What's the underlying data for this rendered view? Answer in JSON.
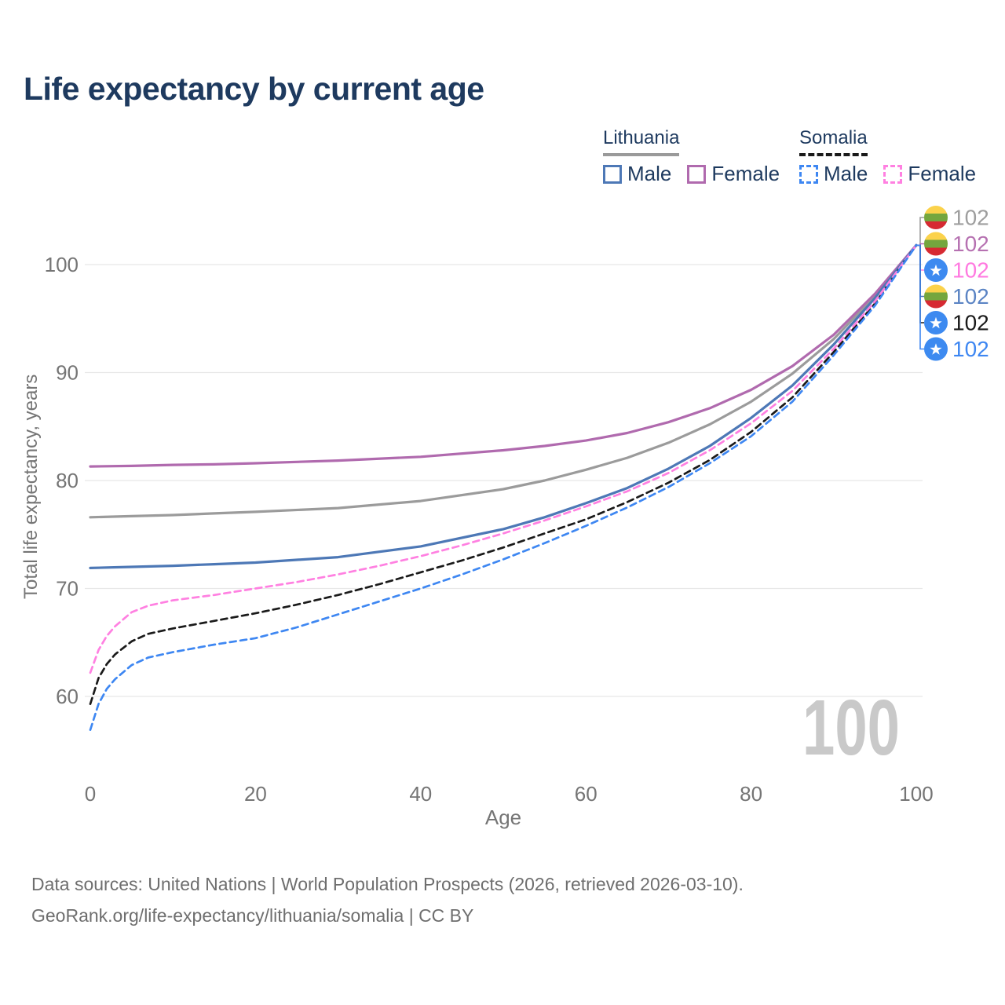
{
  "title": "Life expectancy by current age",
  "legend": {
    "groups": [
      {
        "name": "Lithuania",
        "style": "solid",
        "items": [
          {
            "label": "Male"
          },
          {
            "label": "Female"
          }
        ]
      },
      {
        "name": "Somalia",
        "style": "dashed",
        "items": [
          {
            "label": "Male"
          },
          {
            "label": "Female"
          }
        ]
      }
    ]
  },
  "axes": {
    "y_title": "Total life expectancy, years",
    "x_title": "Age"
  },
  "footer": {
    "line1": "Data sources: United Nations | World Population Prospects (2026, retrieved 2026-03-10).",
    "line2": "GeoRank.org/life-expectancy/lithuania/somalia | CC BY"
  },
  "colors": {
    "title_navy": "#1e3a5f",
    "axis_text": "#757575",
    "gridline": "#e7e7e7",
    "watermark": "#c9c9c9",
    "lithuania_male": "#4d78b6",
    "lithuania_female": "#b06aae",
    "lithuania_total": "#9b9b9b",
    "somalia_male": "#3e87f2",
    "somalia_female": "#ff80e1",
    "somalia_total": "#1a1a1a"
  },
  "chart_data": {
    "type": "line",
    "title": "Life expectancy by current age",
    "xlabel": "Age",
    "ylabel": "Total life expectancy, years",
    "xlim": [
      0,
      100
    ],
    "ylim": [
      55,
      103
    ],
    "xticks": [
      0,
      20,
      40,
      60,
      80,
      100
    ],
    "yticks": [
      60,
      70,
      80,
      90,
      100
    ],
    "grid": "horizontal",
    "legend_position": "top-right",
    "age_counter_watermark": "100",
    "series": [
      {
        "name": "Lithuania Total",
        "country": "Lithuania",
        "sex": "both",
        "color": "#9b9b9b",
        "dash": "none",
        "end_label": "102",
        "points": [
          [
            0,
            76.6
          ],
          [
            5,
            76.7
          ],
          [
            10,
            76.8
          ],
          [
            15,
            76.95
          ],
          [
            20,
            77.1
          ],
          [
            30,
            77.45
          ],
          [
            40,
            78.1
          ],
          [
            50,
            79.2
          ],
          [
            55,
            80.0
          ],
          [
            60,
            81.0
          ],
          [
            65,
            82.1
          ],
          [
            70,
            83.5
          ],
          [
            75,
            85.2
          ],
          [
            80,
            87.3
          ],
          [
            85,
            89.9
          ],
          [
            90,
            93.1
          ],
          [
            95,
            97.1
          ],
          [
            100,
            101.8
          ]
        ]
      },
      {
        "name": "Lithuania Female",
        "country": "Lithuania",
        "sex": "female",
        "color": "#b06aae",
        "dash": "none",
        "end_label": "102",
        "points": [
          [
            0,
            81.3
          ],
          [
            5,
            81.35
          ],
          [
            10,
            81.45
          ],
          [
            15,
            81.5
          ],
          [
            20,
            81.6
          ],
          [
            30,
            81.85
          ],
          [
            40,
            82.2
          ],
          [
            50,
            82.8
          ],
          [
            55,
            83.2
          ],
          [
            60,
            83.7
          ],
          [
            65,
            84.4
          ],
          [
            70,
            85.4
          ],
          [
            75,
            86.7
          ],
          [
            80,
            88.4
          ],
          [
            85,
            90.6
          ],
          [
            90,
            93.5
          ],
          [
            95,
            97.3
          ],
          [
            100,
            101.8
          ]
        ]
      },
      {
        "name": "Lithuania Male",
        "country": "Lithuania",
        "sex": "male",
        "color": "#4d78b6",
        "dash": "none",
        "end_label": "102",
        "points": [
          [
            0,
            71.9
          ],
          [
            5,
            72.0
          ],
          [
            10,
            72.1
          ],
          [
            15,
            72.25
          ],
          [
            20,
            72.4
          ],
          [
            30,
            72.9
          ],
          [
            40,
            73.9
          ],
          [
            50,
            75.5
          ],
          [
            55,
            76.6
          ],
          [
            60,
            77.9
          ],
          [
            65,
            79.3
          ],
          [
            70,
            81.1
          ],
          [
            75,
            83.2
          ],
          [
            80,
            85.8
          ],
          [
            85,
            88.8
          ],
          [
            90,
            92.6
          ],
          [
            95,
            96.9
          ],
          [
            100,
            101.8
          ]
        ]
      },
      {
        "name": "Somalia Total",
        "country": "Somalia",
        "sex": "both",
        "color": "#1a1a1a",
        "dash": "dashed",
        "end_label": "102",
        "points": [
          [
            0,
            59.3
          ],
          [
            1,
            61.7
          ],
          [
            2,
            63.0
          ],
          [
            3,
            63.9
          ],
          [
            5,
            65.1
          ],
          [
            7,
            65.8
          ],
          [
            10,
            66.3
          ],
          [
            15,
            67.0
          ],
          [
            20,
            67.7
          ],
          [
            25,
            68.5
          ],
          [
            30,
            69.4
          ],
          [
            35,
            70.4
          ],
          [
            40,
            71.5
          ],
          [
            45,
            72.6
          ],
          [
            50,
            73.8
          ],
          [
            55,
            75.1
          ],
          [
            60,
            76.4
          ],
          [
            65,
            78.0
          ],
          [
            70,
            79.8
          ],
          [
            75,
            81.9
          ],
          [
            80,
            84.5
          ],
          [
            85,
            87.7
          ],
          [
            90,
            91.9
          ],
          [
            95,
            96.4
          ],
          [
            100,
            101.8
          ]
        ]
      },
      {
        "name": "Somalia Female",
        "country": "Somalia",
        "sex": "female",
        "color": "#ff80e1",
        "dash": "dashed",
        "end_label": "102",
        "points": [
          [
            0,
            62.2
          ],
          [
            1,
            64.3
          ],
          [
            2,
            65.6
          ],
          [
            3,
            66.5
          ],
          [
            5,
            67.8
          ],
          [
            7,
            68.4
          ],
          [
            10,
            68.9
          ],
          [
            15,
            69.4
          ],
          [
            20,
            70.0
          ],
          [
            25,
            70.6
          ],
          [
            30,
            71.3
          ],
          [
            35,
            72.1
          ],
          [
            40,
            73.0
          ],
          [
            45,
            74.0
          ],
          [
            50,
            75.1
          ],
          [
            55,
            76.3
          ],
          [
            60,
            77.6
          ],
          [
            65,
            79.0
          ],
          [
            70,
            80.7
          ],
          [
            75,
            82.8
          ],
          [
            80,
            85.3
          ],
          [
            85,
            88.3
          ],
          [
            90,
            92.2
          ],
          [
            95,
            96.6
          ],
          [
            100,
            101.8
          ]
        ]
      },
      {
        "name": "Somalia Male",
        "country": "Somalia",
        "sex": "male",
        "color": "#3e87f2",
        "dash": "dashed",
        "end_label": "102",
        "points": [
          [
            0,
            56.9
          ],
          [
            1,
            59.3
          ],
          [
            2,
            60.7
          ],
          [
            3,
            61.6
          ],
          [
            5,
            62.9
          ],
          [
            7,
            63.6
          ],
          [
            10,
            64.1
          ],
          [
            15,
            64.8
          ],
          [
            20,
            65.4
          ],
          [
            25,
            66.4
          ],
          [
            30,
            67.6
          ],
          [
            35,
            68.8
          ],
          [
            40,
            70.0
          ],
          [
            45,
            71.3
          ],
          [
            50,
            72.7
          ],
          [
            55,
            74.2
          ],
          [
            60,
            75.8
          ],
          [
            65,
            77.5
          ],
          [
            70,
            79.4
          ],
          [
            75,
            81.6
          ],
          [
            80,
            84.1
          ],
          [
            85,
            87.3
          ],
          [
            90,
            91.6
          ],
          [
            95,
            96.2
          ],
          [
            100,
            101.8
          ]
        ]
      }
    ]
  },
  "badges": [
    {
      "flag": "lithuania",
      "value": "102",
      "label_color": "#9e9e9e",
      "series": "Lithuania Total"
    },
    {
      "flag": "lithuania",
      "value": "102",
      "label_color": "#b671b1",
      "series": "Lithuania Female"
    },
    {
      "flag": "somalia",
      "value": "102",
      "label_color": "#ff7ae0",
      "series": "Somalia Female"
    },
    {
      "flag": "lithuania",
      "value": "102",
      "label_color": "#5b84c4",
      "series": "Lithuania Male"
    },
    {
      "flag": "somalia",
      "value": "102",
      "label_color": "#1a1a1a",
      "series": "Somalia Total"
    },
    {
      "flag": "somalia",
      "value": "102",
      "label_color": "#3e87f2",
      "series": "Somalia Male"
    }
  ],
  "flag_colors": {
    "lithuania_yellow": "#fbd24b",
    "lithuania_green": "#74a63e",
    "lithuania_red": "#d62a32",
    "somalia_blue": "#3d8af0",
    "somalia_star": "#ffffff"
  }
}
